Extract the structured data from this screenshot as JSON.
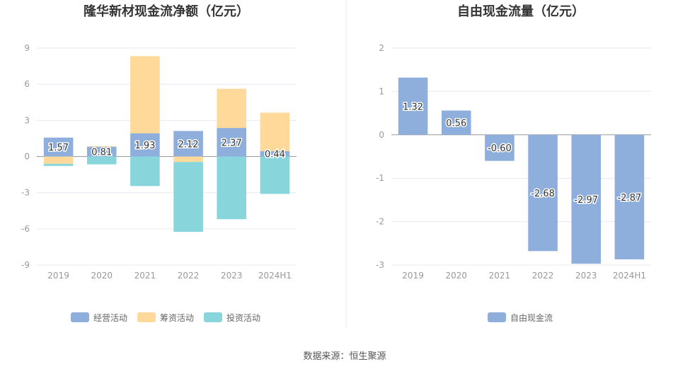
{
  "source": "数据来源：恒生聚源",
  "chart_data": [
    {
      "type": "bar",
      "stacked": true,
      "title": "隆华新材现金流净额（亿元）",
      "categories": [
        "2019",
        "2020",
        "2021",
        "2022",
        "2023",
        "2024H1"
      ],
      "yticks": [
        "9",
        "6",
        "3",
        "0",
        "-3",
        "-6",
        "-9"
      ],
      "ylim": [
        -9,
        9
      ],
      "grid": true,
      "legend_position": "bottom",
      "series": [
        {
          "name": "经营活动",
          "color": "#8eaedc",
          "values": [
            1.57,
            0.81,
            1.93,
            2.12,
            2.37,
            0.44
          ],
          "labels": [
            "1.57",
            "0.81",
            "1.93",
            "2.12",
            "2.37",
            "0.44"
          ]
        },
        {
          "name": "筹资活动",
          "color": "#ffd999",
          "values": [
            -0.6,
            0.05,
            6.4,
            -0.45,
            3.25,
            3.2
          ]
        },
        {
          "name": "投资活动",
          "color": "#88d6db",
          "values": [
            -0.18,
            -0.65,
            -2.45,
            -5.8,
            -5.2,
            -3.1
          ]
        }
      ]
    },
    {
      "type": "bar",
      "title": "自由现金流量（亿元）",
      "categories": [
        "2019",
        "2020",
        "2021",
        "2022",
        "2023",
        "2024H1"
      ],
      "yticks": [
        "2",
        "1",
        "0",
        "-1",
        "-2",
        "-3"
      ],
      "ylim": [
        -3,
        2
      ],
      "grid": true,
      "legend_position": "bottom",
      "series": [
        {
          "name": "自由现金流",
          "color": "#8eaedc",
          "values": [
            1.32,
            0.56,
            -0.6,
            -2.68,
            -2.97,
            -2.87
          ],
          "labels": [
            "1.32",
            "0.56",
            "-0.60",
            "-2.68",
            "-2.97",
            "-2.87"
          ]
        }
      ]
    }
  ]
}
